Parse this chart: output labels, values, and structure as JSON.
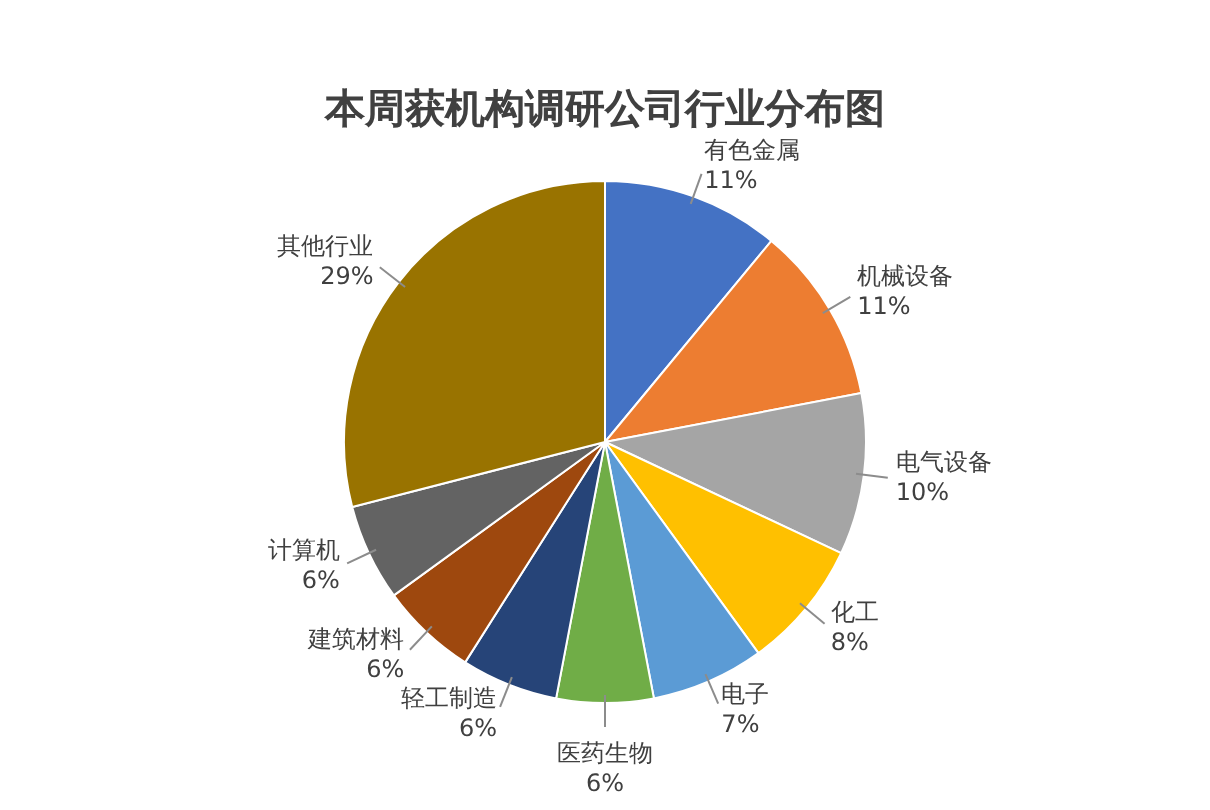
{
  "chart_data": {
    "type": "pie",
    "title": "本周获机构调研公司行业分布图",
    "categories": [
      "有色金属",
      "机械设备",
      "电气设备",
      "化工",
      "电子",
      "医药生物",
      "轻工制造",
      "建筑材料",
      "计算机",
      "其他行业"
    ],
    "values": [
      11,
      11,
      10,
      8,
      7,
      6,
      6,
      6,
      6,
      29
    ],
    "value_labels": [
      "11%",
      "11%",
      "10%",
      "8%",
      "7%",
      "6%",
      "6%",
      "6%",
      "6%",
      "29%"
    ],
    "colors": [
      "#4472c4",
      "#ed7d31",
      "#a5a5a5",
      "#ffc000",
      "#5b9bd5",
      "#70ad47",
      "#264478",
      "#9e480e",
      "#636363",
      "#997300"
    ],
    "legend": false
  }
}
